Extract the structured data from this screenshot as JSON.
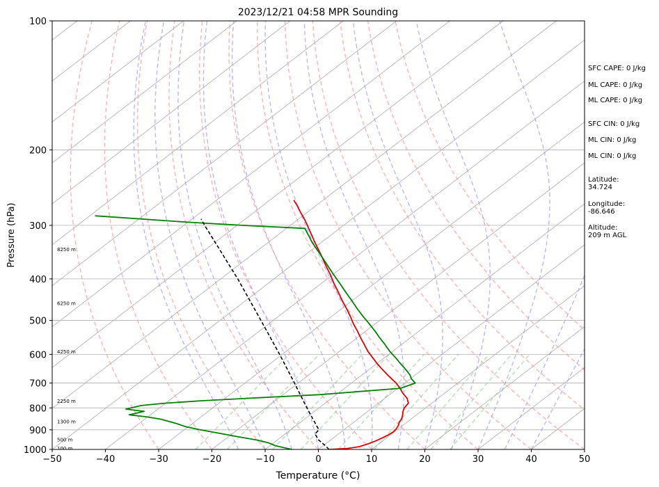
{
  "chart_data": {
    "type": "line",
    "title": "2023/12/21 04:58 MPR Sounding",
    "xlabel": "Temperature (°C)",
    "ylabel": "Pressure (hPa)",
    "xlim": [
      -50,
      50
    ],
    "ylim": [
      1000,
      100
    ],
    "y_scale": "log",
    "x_ticks": [
      -50,
      -40,
      -30,
      -20,
      -10,
      0,
      10,
      20,
      30,
      40,
      50
    ],
    "y_ticks": [
      1000,
      900,
      800,
      700,
      600,
      500,
      400,
      300,
      200,
      100
    ],
    "skew": "skew-T",
    "grid": "isobars at labeled pressures; isotherms gray",
    "series": [
      {
        "color": "#e00000",
        "p": [
          1000,
          995,
          985,
          970,
          955,
          940,
          925,
          910,
          895,
          880,
          865,
          850,
          835,
          815,
          800,
          780,
          760,
          740,
          720,
          700,
          685,
          670,
          650,
          630,
          610,
          590,
          570,
          550,
          530,
          510,
          490,
          470,
          450,
          430,
          410,
          390,
          370,
          350,
          330,
          310,
          300,
          290,
          280,
          270,
          262
        ],
        "t": [
          2.0,
          5.2,
          7.0,
          8.0,
          8.7,
          9.2,
          9.6,
          9.8,
          9.6,
          9.2,
          8.6,
          8.2,
          7.6,
          6.6,
          6.0,
          5.6,
          4.2,
          2.2,
          0.4,
          -1.6,
          -3.4,
          -5.2,
          -7.6,
          -10.0,
          -12.3,
          -14.7,
          -16.9,
          -19.2,
          -21.5,
          -24.0,
          -26.4,
          -29.0,
          -31.8,
          -34.6,
          -37.6,
          -40.6,
          -43.9,
          -47.3,
          -51.0,
          -54.8,
          -56.8,
          -58.9,
          -61.2,
          -63.5,
          -65.5
        ]
      },
      {
        "color": "#008000",
        "p": [
          1000,
          980,
          965,
          950,
          935,
          915,
          900,
          885,
          870,
          850,
          840,
          830,
          815,
          805,
          790,
          780,
          770,
          760,
          745,
          720,
          700,
          685,
          670,
          650,
          630,
          610,
          590,
          570,
          550,
          530,
          510,
          490,
          470,
          450,
          430,
          410,
          390,
          370,
          350,
          330,
          305,
          300,
          295,
          285
        ],
        "t": [
          -5.0,
          -9.0,
          -11.0,
          -14.0,
          -18.0,
          -23.0,
          -27.0,
          -30.5,
          -33.0,
          -37.0,
          -40.0,
          -44.0,
          -42.0,
          -46.0,
          -44.0,
          -40.0,
          -34.0,
          -26.0,
          -13.0,
          0.5,
          2.0,
          0.3,
          -1.0,
          -3.2,
          -5.6,
          -8.0,
          -10.6,
          -13.0,
          -15.6,
          -18.2,
          -21.0,
          -24.0,
          -27.0,
          -30.0,
          -33.2,
          -36.5,
          -40.0,
          -43.6,
          -47.4,
          -51.5,
          -56.5,
          -69.0,
          -80.0,
          -99.0
        ]
      },
      {
        "color": "#000000",
        "dashed": true,
        "p": [
          1000,
          980,
          950,
          920,
          900,
          850,
          800,
          700,
          600,
          500,
          400,
          300,
          290
        ],
        "t": [
          2.0,
          0.4,
          -2.3,
          -4.4,
          -4.7,
          -8.4,
          -12.3,
          -20.7,
          -30.5,
          -42.3,
          -56.8,
          -76.1,
          -78.3
        ]
      }
    ],
    "height_labels": [
      {
        "text": "100 m",
        "p": 992
      },
      {
        "text": "500 m",
        "p": 947
      },
      {
        "text": "1300 m",
        "p": 860
      },
      {
        "text": "2250 m",
        "p": 770
      },
      {
        "text": "4250 m",
        "p": 590
      },
      {
        "text": "6250 m",
        "p": 455
      },
      {
        "text": "8250 m",
        "p": 341
      }
    ],
    "background": {
      "isotherm_color": "#aaaaaa",
      "dry_adiabat_color": "#ff9a9a",
      "moist_adiabat_color": "#9a9aff",
      "mixing_ratio_color": "#7fbf7f",
      "dry_adiabat_theta_c": [
        -30,
        -20,
        -10,
        0,
        10,
        20,
        30,
        40,
        50,
        60,
        70,
        80
      ],
      "moist_adiabat_start_c": [
        -15,
        -10,
        -5,
        0,
        5,
        10,
        15,
        20,
        25,
        30,
        35,
        40
      ],
      "mixing_ratio_gkg": [
        0.6,
        1,
        2,
        3,
        5,
        8,
        12,
        16,
        20
      ]
    }
  },
  "side_panel": {
    "sfc_cape": "SFC CAPE: 0 J/kg",
    "ml_cape_1": "ML CAPE: 0 J/kg",
    "ml_cape_2": "ML CAPE: 0 J/kg",
    "sfc_cin": "SFC CIN: 0 J/kg",
    "ml_cin_1": "ML CIN: 0 J/kg",
    "ml_cin_2": "ML CIN: 0 J/kg",
    "latitude": "Latitude:\n34.724",
    "longitude": "Longitude:\n-86.646",
    "altitude": "Altitude:\n209 m AGL"
  }
}
